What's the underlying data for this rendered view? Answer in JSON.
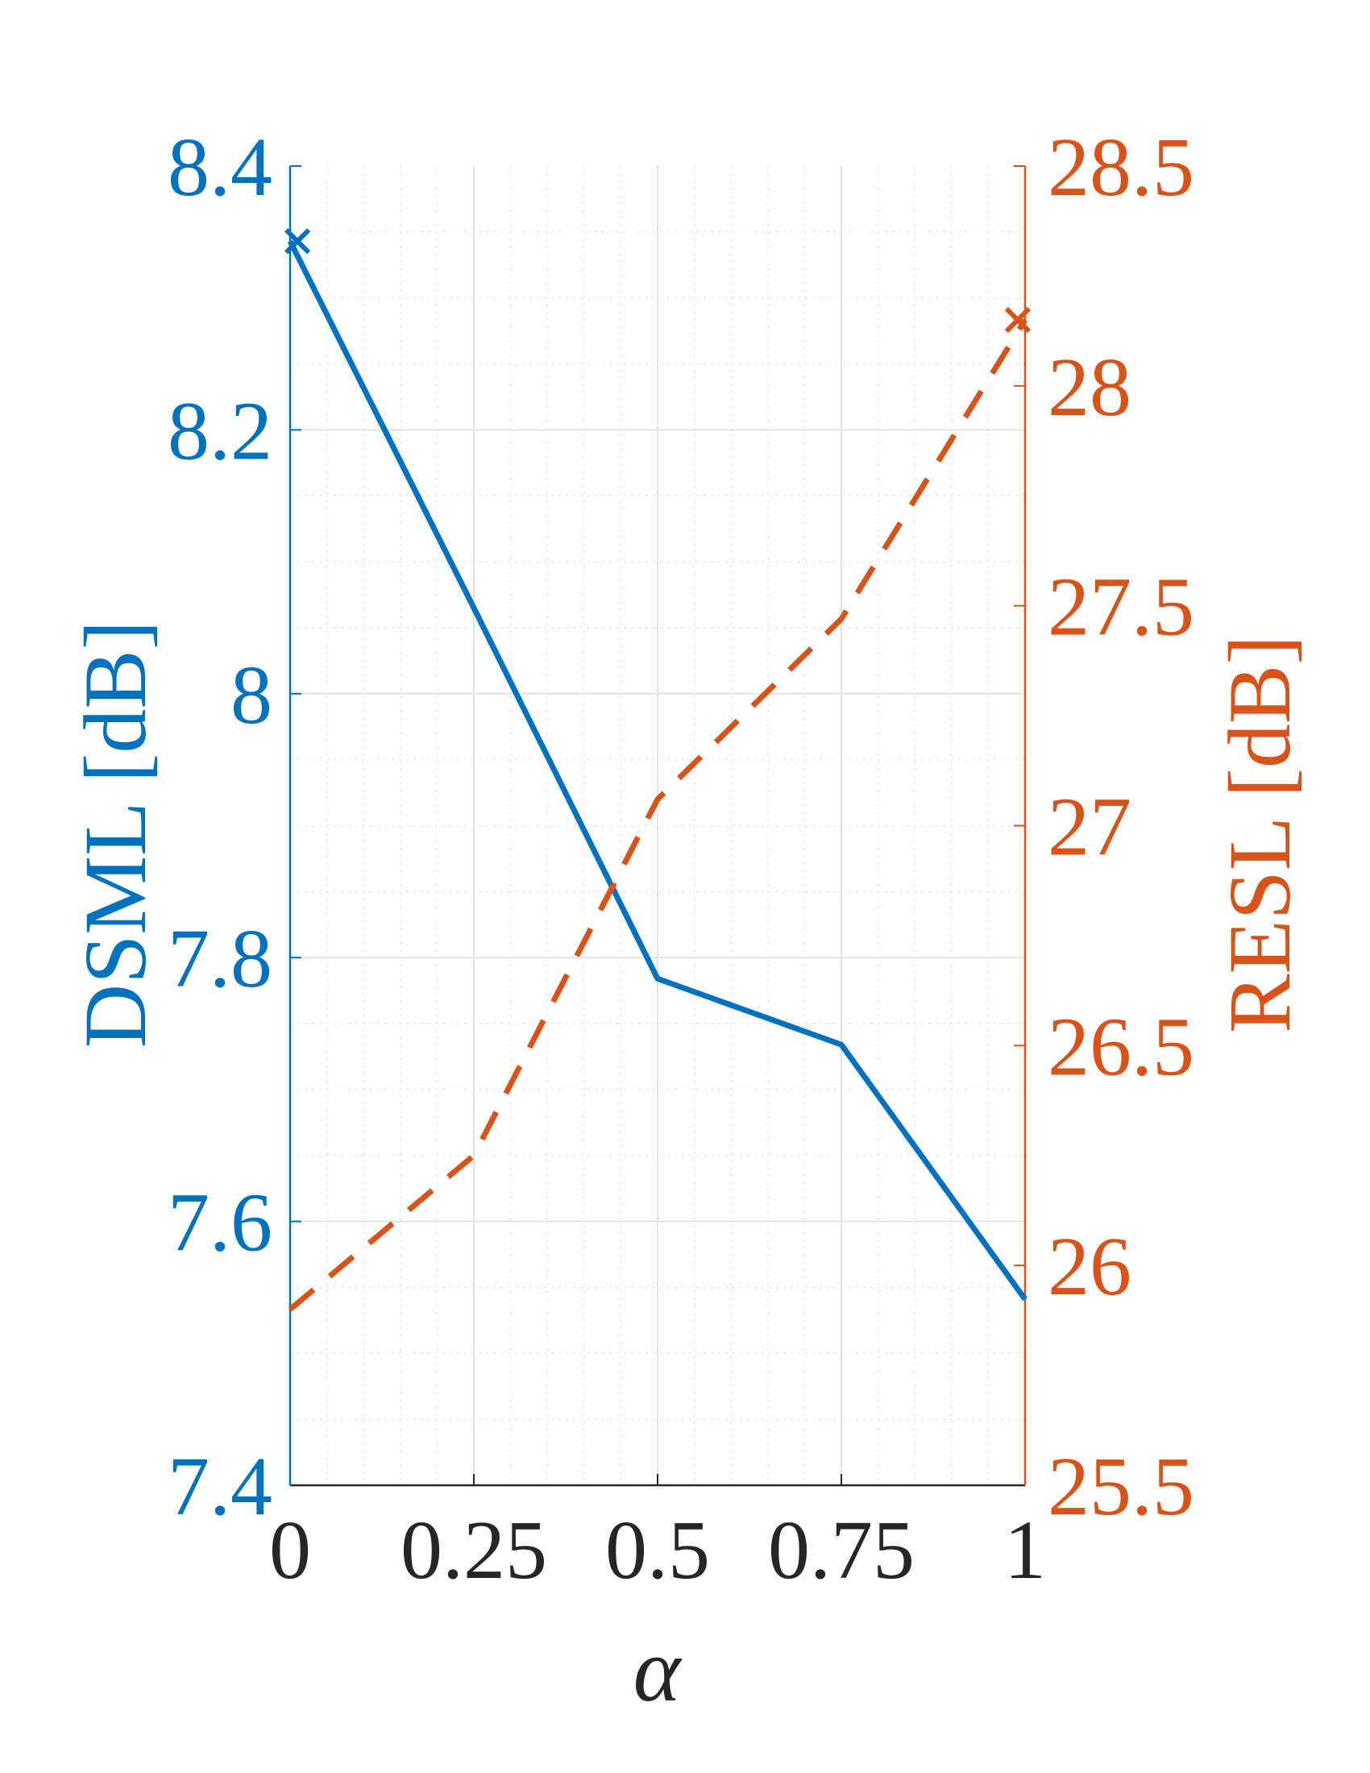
{
  "colors": {
    "left_axis": "#0072BD",
    "right_axis": "#D95319",
    "x_axis": "#262626",
    "grid": "#e3e3e3",
    "grid_minor": "#efefef"
  },
  "chart_data": {
    "type": "line",
    "title": "",
    "xlabel": "α",
    "ylabel_left": "DSML [dB]",
    "ylabel_right": "RESL [dB]",
    "x": [
      0,
      0.25,
      0.5,
      0.75,
      1
    ],
    "x_ticks": [
      "0",
      "0.25",
      "0.5",
      "0.75",
      "1"
    ],
    "xlim": [
      0,
      1
    ],
    "ylim_left": [
      7.4,
      8.4
    ],
    "ylim_right": [
      25.5,
      28.5
    ],
    "y_ticks_left": [
      "7.4",
      "7.6",
      "7.8",
      "8",
      "8.2",
      "8.4"
    ],
    "y_ticks_right": [
      "25.5",
      "26",
      "26.5",
      "27",
      "27.5",
      "28",
      "28.5"
    ],
    "grid": true,
    "minor_grid": true,
    "series": [
      {
        "name": "",
        "axis": "left",
        "style": "solid",
        "color": "#0072BD",
        "values": [
          8.343,
          8.065,
          7.784,
          7.734,
          7.541
        ],
        "marker_x": 0.01,
        "marker_y": 8.343
      },
      {
        "name": "",
        "axis": "right",
        "style": "dashed",
        "color": "#D95319",
        "values": [
          25.9,
          26.25,
          27.06,
          27.47,
          28.15
        ],
        "marker_x": 0.99,
        "marker_y": 28.15
      }
    ]
  }
}
